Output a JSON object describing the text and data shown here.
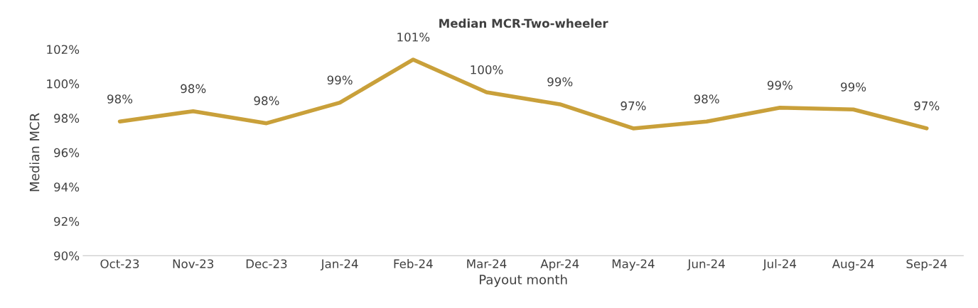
{
  "chart_data": {
    "type": "line",
    "title": "Median MCR-Two-wheeler",
    "xlabel": "Payout month",
    "ylabel": "Median MCR",
    "categories": [
      "Oct-23",
      "Nov-23",
      "Dec-23",
      "Jan-24",
      "Feb-24",
      "Mar-24",
      "Apr-24",
      "May-24",
      "Jun-24",
      "Jul-24",
      "Aug-24",
      "Sep-24"
    ],
    "series": [
      {
        "color": "#c9a03a",
        "values": [
          97.8,
          98.4,
          97.7,
          98.9,
          101.4,
          99.5,
          98.8,
          97.4,
          97.8,
          98.6,
          98.5,
          97.4
        ],
        "value_labels": [
          "98%",
          "98%",
          "98%",
          "99%",
          "101%",
          "100%",
          "99%",
          "97%",
          "98%",
          "99%",
          "99%",
          "97%"
        ]
      }
    ],
    "ylim": [
      90,
      102
    ],
    "yticks": [
      {
        "value": 90,
        "label": "90%"
      },
      {
        "value": 92,
        "label": "92%"
      },
      {
        "value": 94,
        "label": "94%"
      },
      {
        "value": 96,
        "label": "96%"
      },
      {
        "value": 98,
        "label": "98%"
      },
      {
        "value": 100,
        "label": "100%"
      },
      {
        "value": 102,
        "label": "102%"
      }
    ],
    "grid": false,
    "legend": false,
    "marker": "none",
    "line_style": "solid"
  }
}
